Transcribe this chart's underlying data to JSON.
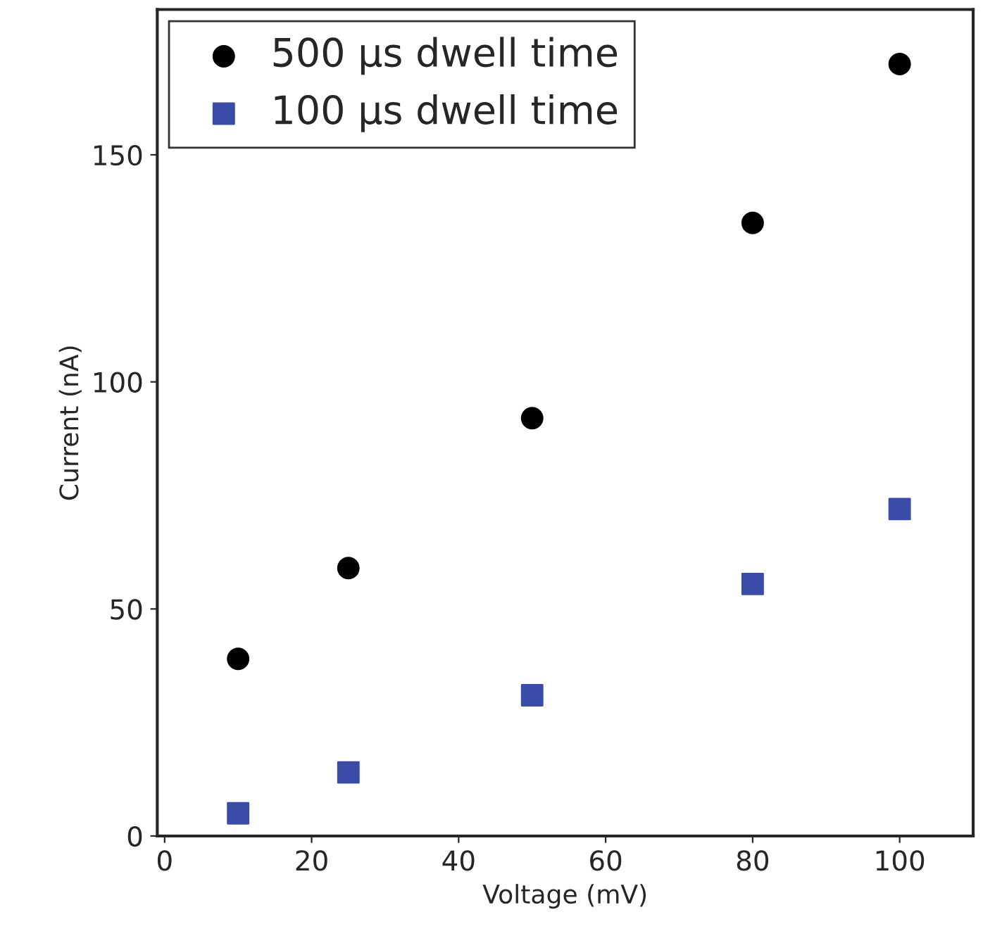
{
  "chart_data": {
    "type": "scatter",
    "xlabel": "Voltage (mV)",
    "ylabel": "Current (nA)",
    "x": [
      10,
      25,
      50,
      80,
      100
    ],
    "series": [
      {
        "name": "500 µs dwell time",
        "color": "#000000",
        "marker": "circle",
        "values": [
          39,
          59,
          92,
          135,
          170
        ]
      },
      {
        "name": "100 µs dwell time",
        "color": "#3a4ca8",
        "marker": "square",
        "values": [
          5,
          14,
          31,
          55.5,
          72
        ]
      }
    ],
    "xlim": [
      -1,
      110
    ],
    "ylim": [
      0,
      182
    ],
    "xticks": [
      0,
      20,
      40,
      60,
      80,
      100
    ],
    "yticks": [
      0,
      50,
      100,
      150
    ],
    "grid": false,
    "legend": "top left"
  }
}
